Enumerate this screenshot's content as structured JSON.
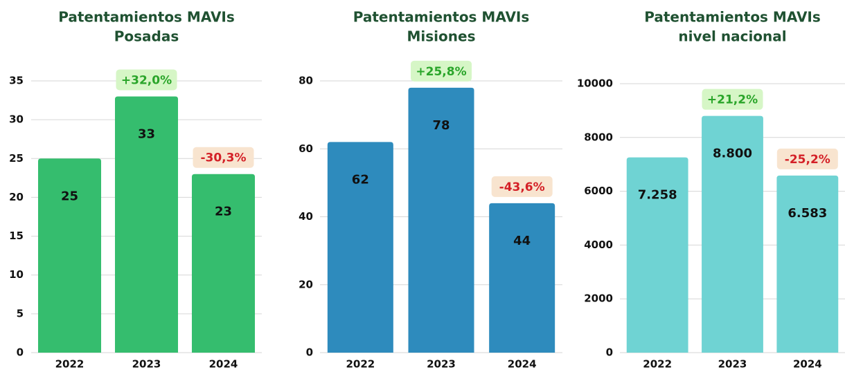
{
  "chart_data": [
    {
      "type": "bar",
      "title": "Patentamientos MAVIs",
      "subtitle": "Posadas",
      "categories": [
        "2022",
        "2023",
        "2024"
      ],
      "values": [
        25,
        33,
        23
      ],
      "annotations": [
        null,
        "+32,0%",
        "-30,3%"
      ],
      "color": "#35bd6e",
      "ylim": [
        0,
        35
      ],
      "yticks": [
        0,
        5,
        10,
        15,
        20,
        25,
        30,
        35
      ],
      "grid": true
    },
    {
      "type": "bar",
      "title": "Patentamientos MAVIs",
      "subtitle": "Misiones",
      "categories": [
        "2022",
        "2023",
        "2024"
      ],
      "values": [
        62,
        78,
        44
      ],
      "annotations": [
        null,
        "+25,8%",
        "-43,6%"
      ],
      "color": "#2e8bbd",
      "ylim": [
        0,
        80
      ],
      "yticks": [
        0,
        20,
        40,
        60,
        80
      ],
      "grid": true
    },
    {
      "type": "bar",
      "title": "Patentamientos MAVIs",
      "subtitle": "nivel nacional",
      "categories": [
        "2022",
        "2023",
        "2024"
      ],
      "values": [
        7258,
        8800,
        6583
      ],
      "value_labels": [
        "7.258",
        "8.800",
        "6.583"
      ],
      "annotations": [
        null,
        "+21,2%",
        "-25,2%"
      ],
      "color": "#6fd3d3",
      "ylim": [
        0,
        10000
      ],
      "yticks": [
        0,
        2000,
        4000,
        6000,
        8000,
        10000
      ],
      "grid": true
    }
  ]
}
